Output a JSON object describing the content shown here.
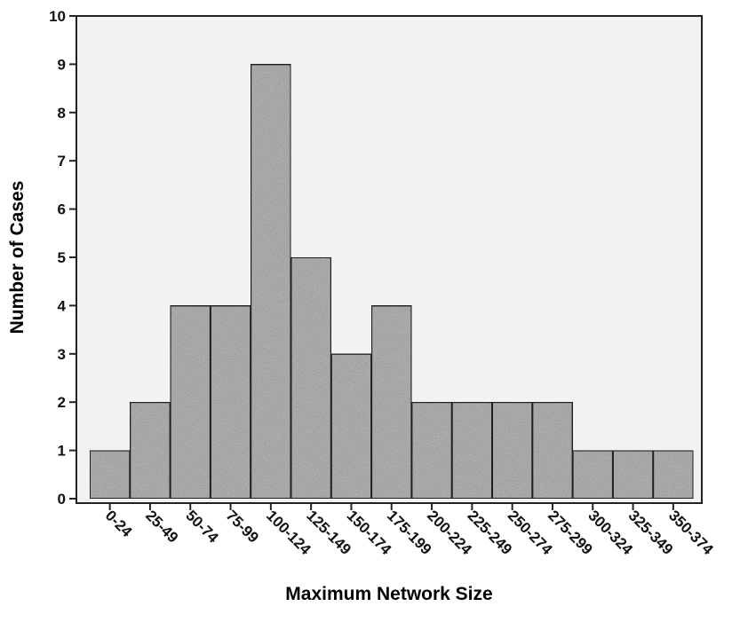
{
  "chart_data": {
    "type": "bar",
    "title": "",
    "xlabel": "Maximum Network Size",
    "ylabel": "Number of Cases",
    "ylim": [
      0,
      10
    ],
    "yticks": [
      0,
      1,
      2,
      3,
      4,
      5,
      6,
      7,
      8,
      9,
      10
    ],
    "grid": false,
    "legend": "none",
    "bar_color": "#b3b3b3",
    "categories": [
      "0-24",
      "25-49",
      "50-74",
      "75-99",
      "100-124",
      "125-149",
      "150-174",
      "175-199",
      "200-224",
      "225-249",
      "250-274",
      "275-299",
      "300-324",
      "325-349",
      "350-374"
    ],
    "values": [
      1,
      2,
      4,
      4,
      9,
      5,
      3,
      4,
      2,
      2,
      2,
      2,
      1,
      1,
      1
    ]
  }
}
